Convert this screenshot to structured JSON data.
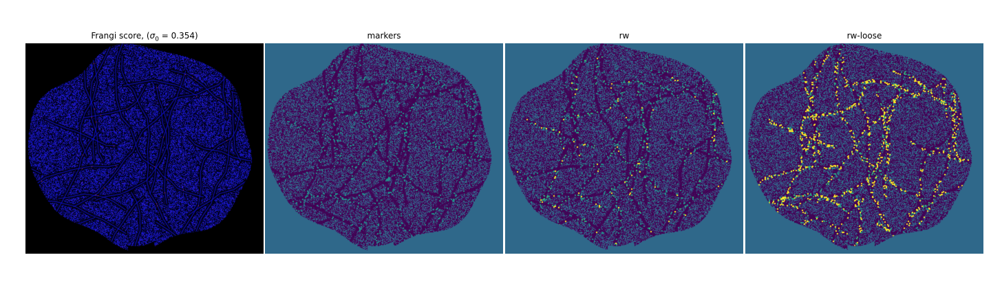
{
  "figure": {
    "panels": [
      {
        "id": "frangi",
        "title_prefix": "Frangi score, (",
        "title_symbol": "σ",
        "title_subscript": "0",
        "title_suffix": " = 0.354)",
        "background": "#000000",
        "style": "frangi"
      },
      {
        "id": "markers",
        "title": "markers",
        "background": "#2f688a",
        "style": "markers"
      },
      {
        "id": "rw",
        "title": "rw",
        "background": "#2f688a",
        "style": "rw"
      },
      {
        "id": "rw-loose",
        "title": "rw-loose",
        "background": "#2f688a",
        "style": "rwloose"
      }
    ],
    "colors": {
      "viridis_dark": "#440154",
      "viridis_teal": "#21918c",
      "viridis_green": "#35b779",
      "viridis_yellow": "#fde725",
      "frangi_blue": "#1010c8",
      "frangi_red": "#e04040"
    }
  }
}
